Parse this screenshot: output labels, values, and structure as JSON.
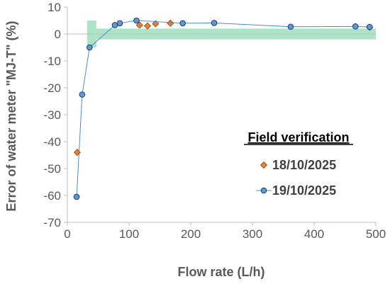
{
  "chart_data": {
    "type": "scatter",
    "xlabel": "Flow rate (L/h)",
    "ylabel": "Error of water meter \"MJ-T\"  (%)",
    "xlim": [
      0,
      500
    ],
    "ylim": [
      -70,
      10
    ],
    "x_ticks": [
      0,
      100,
      200,
      300,
      400,
      500
    ],
    "y_ticks": [
      10,
      0,
      -10,
      -20,
      -30,
      -40,
      -50,
      -60,
      -70
    ],
    "x_tick_labels": [
      "0",
      "100",
      "200",
      "300",
      "400",
      "500"
    ],
    "y_tick_labels": [
      "10",
      "0",
      "-10",
      "-20",
      "-30",
      "-40",
      "-50",
      "-60",
      "-70"
    ],
    "grid": false,
    "legend": {
      "title": "Field verification",
      "placement": "right-center"
    },
    "tolerance_band": {
      "color": "#8fdcb4",
      "upper_zone": {
        "x": [
          32,
          47
        ],
        "y": [
          -5,
          5
        ]
      },
      "lower_zone": {
        "x": [
          47,
          500
        ],
        "y": [
          -2,
          2
        ]
      }
    },
    "series": [
      {
        "name": "18/10/2025",
        "marker": "diamond",
        "line": false,
        "color": "#ed7d31",
        "stroke": "#8a4513",
        "points": [
          [
            16,
            -44
          ],
          [
            117,
            3.3
          ],
          [
            130,
            3.0
          ],
          [
            143,
            3.8
          ],
          [
            167,
            4.0
          ],
          [
            490,
            2.5
          ]
        ]
      },
      {
        "name": "19/10/2025",
        "marker": "circle",
        "line": true,
        "color": "#5b9bd5",
        "stroke": "#1f3864",
        "line_color": "#4a90c8",
        "points": [
          [
            15,
            -60.5
          ],
          [
            24,
            -22.5
          ],
          [
            36,
            -5
          ],
          [
            77,
            3.3
          ],
          [
            85,
            4.0
          ],
          [
            112,
            5.0
          ],
          [
            187,
            4.0
          ],
          [
            238,
            4.1
          ],
          [
            362,
            2.7
          ],
          [
            467,
            2.8
          ],
          [
            490,
            2.6
          ]
        ]
      }
    ]
  }
}
